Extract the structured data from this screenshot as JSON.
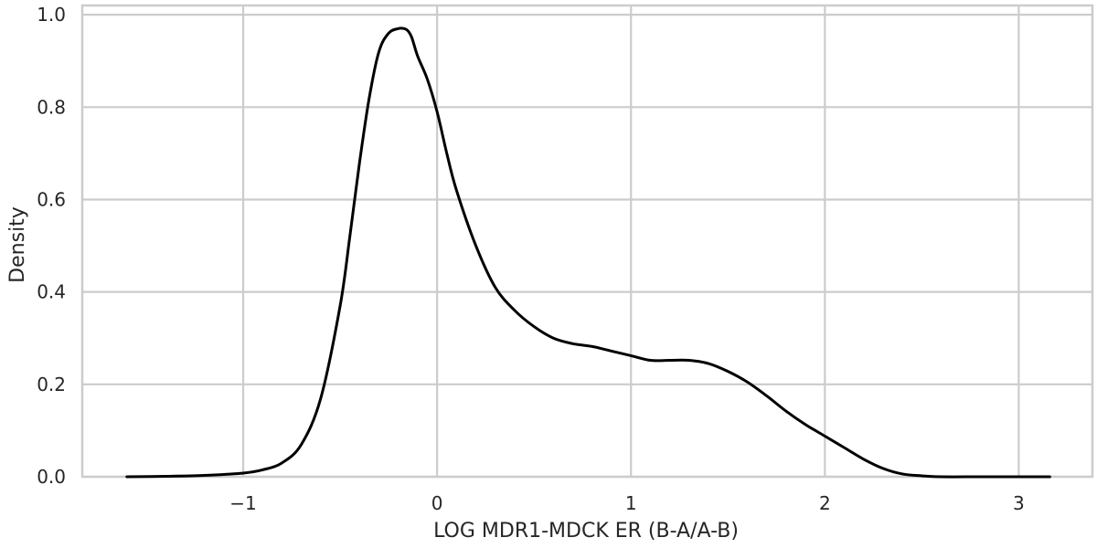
{
  "chart_data": {
    "type": "line",
    "title": "",
    "xlabel": "LOG MDR1-MDCK ER (B-A/A-B)",
    "ylabel": "Density",
    "xlim": [
      -1.83,
      3.38
    ],
    "ylim": [
      0,
      1.02
    ],
    "xticks": [
      -1,
      0,
      1,
      2,
      3
    ],
    "xtick_labels": [
      "−1",
      "0",
      "1",
      "2",
      "3"
    ],
    "yticks": [
      0.0,
      0.2,
      0.4,
      0.6,
      0.8,
      1.0
    ],
    "ytick_labels": [
      "0.0",
      "0.2",
      "0.4",
      "0.6",
      "0.8",
      "1.0"
    ],
    "grid": true,
    "line_color": "#000000",
    "grid_color": "#cccccc",
    "series": [
      {
        "x": [
          -1.6,
          -1.4,
          -1.2,
          -1.0,
          -0.9,
          -0.8,
          -0.7,
          -0.6,
          -0.5,
          -0.45,
          -0.4,
          -0.35,
          -0.3,
          -0.25,
          -0.2,
          -0.17,
          -0.15,
          -0.13,
          -0.1,
          -0.05,
          0.0,
          0.05,
          0.1,
          0.2,
          0.3,
          0.4,
          0.5,
          0.6,
          0.7,
          0.8,
          0.9,
          1.0,
          1.1,
          1.2,
          1.3,
          1.4,
          1.5,
          1.6,
          1.7,
          1.8,
          1.9,
          2.0,
          2.1,
          2.2,
          2.3,
          2.4,
          2.5,
          2.6,
          2.8,
          3.0,
          3.16
        ],
        "y": [
          0.0,
          0.001,
          0.003,
          0.008,
          0.015,
          0.03,
          0.07,
          0.17,
          0.37,
          0.52,
          0.68,
          0.82,
          0.92,
          0.96,
          0.97,
          0.97,
          0.965,
          0.95,
          0.91,
          0.86,
          0.79,
          0.7,
          0.62,
          0.5,
          0.41,
          0.36,
          0.325,
          0.3,
          0.288,
          0.282,
          0.272,
          0.262,
          0.252,
          0.252,
          0.252,
          0.245,
          0.228,
          0.205,
          0.175,
          0.142,
          0.113,
          0.088,
          0.063,
          0.038,
          0.018,
          0.006,
          0.002,
          0.0,
          0.0,
          0.0,
          0.0
        ]
      }
    ]
  }
}
